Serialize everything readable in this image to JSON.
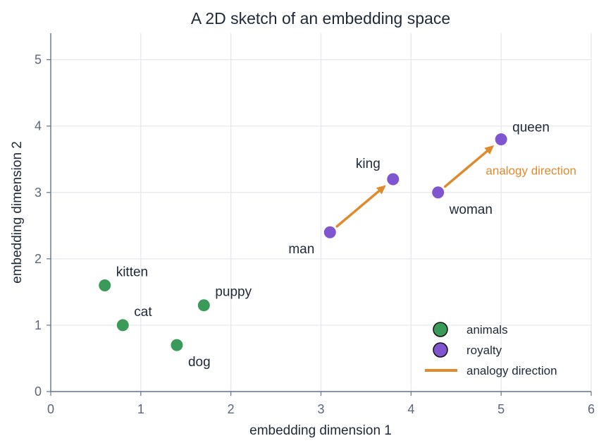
{
  "chart_data": {
    "type": "scatter",
    "title": "A 2D sketch of an embedding space",
    "xlabel": "embedding dimension 1",
    "ylabel": "embedding dimension 2",
    "xlim": [
      0,
      6
    ],
    "ylim": [
      0,
      5.4
    ],
    "xticks": [
      "0",
      "1",
      "2",
      "3",
      "4",
      "5",
      "6"
    ],
    "yticks": [
      "0",
      "1",
      "2",
      "3",
      "4",
      "5"
    ],
    "grid": true,
    "legend_position": "bottom-right",
    "series": [
      {
        "name": "animals",
        "color": "#3a9a59",
        "points": [
          {
            "label": "kitten",
            "x": 0.6,
            "y": 1.6
          },
          {
            "label": "cat",
            "x": 0.8,
            "y": 1.0
          },
          {
            "label": "puppy",
            "x": 1.7,
            "y": 1.3
          },
          {
            "label": "dog",
            "x": 1.4,
            "y": 0.7
          }
        ]
      },
      {
        "name": "royalty",
        "color": "#8055d0",
        "points": [
          {
            "label": "man",
            "x": 3.1,
            "y": 2.4
          },
          {
            "label": "king",
            "x": 3.8,
            "y": 3.2
          },
          {
            "label": "woman",
            "x": 4.3,
            "y": 3.0
          },
          {
            "label": "queen",
            "x": 5.0,
            "y": 3.8
          }
        ]
      }
    ],
    "arrows": [
      {
        "from": [
          3.1,
          2.4
        ],
        "to": [
          3.8,
          3.2
        ]
      },
      {
        "from": [
          4.3,
          3.0
        ],
        "to": [
          5.0,
          3.8
        ]
      }
    ],
    "arrow_name": "analogy direction",
    "arrow_color": "#e08a2e",
    "annotation": {
      "text": "analogy direction",
      "x": 4.83,
      "y": 3.33
    }
  }
}
